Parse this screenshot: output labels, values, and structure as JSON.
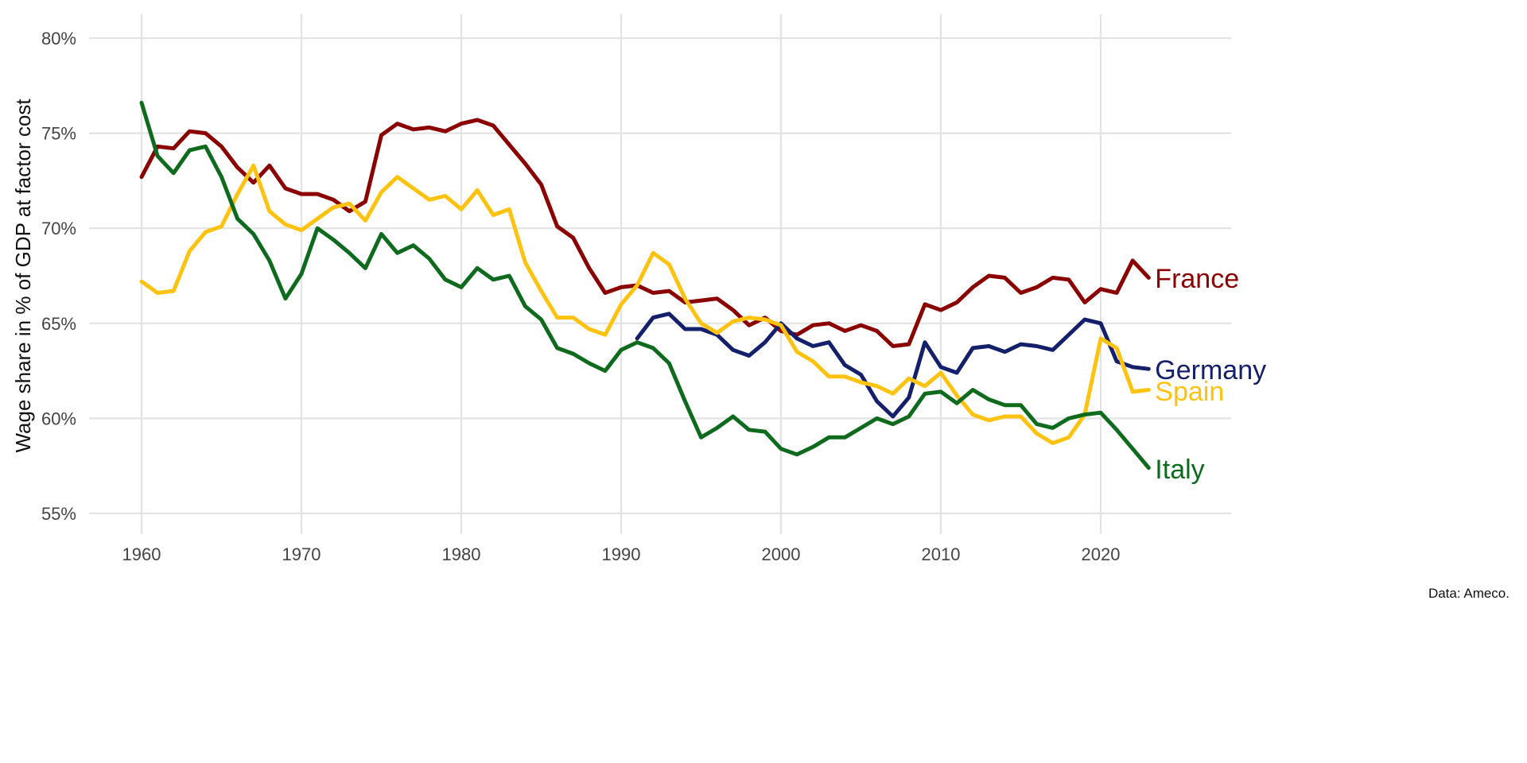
{
  "chart_data": {
    "type": "line",
    "title": "",
    "xlabel": "",
    "ylabel": "Wage share in % of GDP at factor cost",
    "caption": "Data: Ameco.",
    "xlim": [
      1957,
      2027
    ],
    "ylim": [
      54,
      81
    ],
    "x_ticks": [
      1960,
      1970,
      1980,
      1990,
      2000,
      2010,
      2020
    ],
    "x_tick_labels": [
      "1960",
      "1970",
      "1980",
      "1990",
      "2000",
      "2010",
      "2020"
    ],
    "y_ticks": [
      55,
      60,
      65,
      70,
      75,
      80
    ],
    "y_tick_labels": [
      "55%",
      "60%",
      "65%",
      "70%",
      "75%",
      "80%"
    ],
    "grid": true,
    "legend": "direct labels at line ends (right)",
    "series": [
      {
        "name": "France",
        "color": "#8B0000",
        "start": 1960,
        "values": [
          72.7,
          74.3,
          74.2,
          75.1,
          75.0,
          74.3,
          73.2,
          72.4,
          73.3,
          72.1,
          71.8,
          71.8,
          71.5,
          70.9,
          71.4,
          74.9,
          75.5,
          75.2,
          75.3,
          75.1,
          75.5,
          75.7,
          75.4,
          74.4,
          73.4,
          72.3,
          70.1,
          69.5,
          67.9,
          66.6,
          66.9,
          67.0,
          66.6,
          66.7,
          66.1,
          66.2,
          66.3,
          65.7,
          64.9,
          65.3,
          64.6,
          64.4,
          64.9,
          65.0,
          64.6,
          64.9,
          64.6,
          63.8,
          63.9,
          66.0,
          65.7,
          66.1,
          66.9,
          67.5,
          67.4,
          66.6,
          66.9,
          67.4,
          67.3,
          66.1,
          66.8,
          66.6,
          68.3,
          67.4
        ]
      },
      {
        "name": "Germany",
        "color": "#14206B",
        "start": 1991,
        "values": [
          64.2,
          65.3,
          65.5,
          64.7,
          64.7,
          64.4,
          63.6,
          63.3,
          64.0,
          65.0,
          64.2,
          63.8,
          64.0,
          62.8,
          62.3,
          60.9,
          60.1,
          61.1,
          64.0,
          62.7,
          62.4,
          63.7,
          63.8,
          63.5,
          63.9,
          63.8,
          63.6,
          64.4,
          65.2,
          65.0,
          63.0,
          62.7,
          62.6
        ]
      },
      {
        "name": "Spain",
        "color": "#FFC20E",
        "start": 1960,
        "values": [
          67.2,
          66.6,
          66.7,
          68.8,
          69.8,
          70.1,
          71.8,
          73.3,
          70.9,
          70.2,
          69.9,
          70.5,
          71.1,
          71.3,
          70.4,
          71.9,
          72.7,
          72.1,
          71.5,
          71.7,
          71.0,
          72.0,
          70.7,
          71.0,
          68.2,
          66.7,
          65.3,
          65.3,
          64.7,
          64.4,
          66.0,
          67.0,
          68.7,
          68.1,
          66.3,
          65.0,
          64.5,
          65.1,
          65.3,
          65.2,
          64.9,
          63.5,
          63.0,
          62.2,
          62.2,
          61.9,
          61.7,
          61.3,
          62.1,
          61.7,
          62.4,
          61.2,
          60.2,
          59.9,
          60.1,
          60.1,
          59.2,
          58.7,
          59.0,
          60.2,
          64.2,
          63.7,
          61.4,
          61.5
        ]
      },
      {
        "name": "Italy",
        "color": "#0E6B1E",
        "start": 1960,
        "values": [
          76.6,
          73.8,
          72.9,
          74.1,
          74.3,
          72.7,
          70.5,
          69.7,
          68.3,
          66.3,
          67.6,
          70.0,
          69.4,
          68.7,
          67.9,
          69.7,
          68.7,
          69.1,
          68.4,
          67.3,
          66.9,
          67.9,
          67.3,
          67.5,
          65.9,
          65.2,
          63.7,
          63.4,
          62.9,
          62.5,
          63.6,
          64.0,
          63.7,
          62.9,
          60.9,
          59.0,
          59.5,
          60.1,
          59.4,
          59.3,
          58.4,
          58.1,
          58.5,
          59.0,
          59.0,
          59.5,
          60.0,
          59.7,
          60.1,
          61.3,
          61.4,
          60.8,
          61.5,
          61.0,
          60.7,
          60.7,
          59.7,
          59.5,
          60.0,
          60.2,
          60.3,
          59.4,
          58.4,
          57.4
        ]
      }
    ]
  }
}
